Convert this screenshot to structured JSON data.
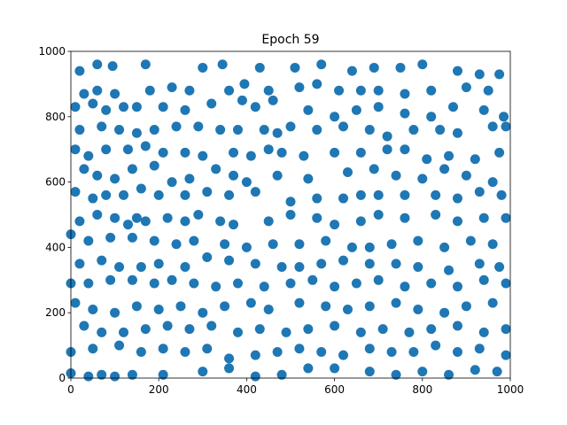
{
  "chart_data": {
    "type": "scatter",
    "title": "Epoch 59",
    "color": "#1f77b4",
    "xlim": [
      0,
      1000
    ],
    "ylim": [
      0,
      1000
    ],
    "xticks": [
      0,
      200,
      400,
      600,
      800,
      1000
    ],
    "yticks": [
      0,
      200,
      400,
      600,
      800,
      1000
    ],
    "x": [
      20,
      60,
      95,
      170,
      300,
      345,
      430,
      510,
      570,
      640,
      690,
      750,
      800,
      880,
      930,
      975,
      30,
      60,
      100,
      180,
      230,
      270,
      360,
      395,
      450,
      520,
      560,
      610,
      660,
      700,
      760,
      820,
      900,
      950,
      10,
      50,
      80,
      120,
      150,
      210,
      260,
      320,
      390,
      420,
      460,
      540,
      600,
      650,
      700,
      760,
      820,
      870,
      940,
      985,
      20,
      70,
      110,
      150,
      190,
      240,
      290,
      340,
      380,
      440,
      470,
      500,
      560,
      620,
      680,
      720,
      780,
      840,
      880,
      960,
      990,
      10,
      40,
      80,
      130,
      170,
      210,
      260,
      300,
      370,
      410,
      450,
      480,
      530,
      600,
      660,
      720,
      760,
      810,
      860,
      920,
      975,
      30,
      60,
      100,
      140,
      190,
      230,
      270,
      330,
      370,
      400,
      470,
      540,
      630,
      690,
      740,
      800,
      850,
      900,
      960,
      10,
      50,
      80,
      120,
      160,
      200,
      260,
      310,
      360,
      420,
      500,
      560,
      620,
      660,
      700,
      760,
      830,
      880,
      930,
      980,
      20,
      60,
      100,
      130,
      150,
      170,
      220,
      260,
      290,
      340,
      370,
      450,
      500,
      560,
      600,
      660,
      700,
      760,
      830,
      880,
      940,
      990,
      0,
      40,
      90,
      140,
      190,
      240,
      280,
      350,
      400,
      460,
      520,
      580,
      640,
      680,
      730,
      790,
      850,
      910,
      960,
      20,
      70,
      110,
      160,
      200,
      260,
      310,
      360,
      420,
      480,
      520,
      570,
      620,
      680,
      740,
      790,
      860,
      930,
      975,
      0,
      40,
      90,
      140,
      190,
      230,
      280,
      330,
      380,
      440,
      500,
      550,
      600,
      650,
      700,
      760,
      820,
      880,
      940,
      990,
      10,
      50,
      100,
      150,
      200,
      250,
      300,
      350,
      410,
      450,
      520,
      580,
      630,
      680,
      740,
      790,
      850,
      900,
      960,
      30,
      70,
      120,
      170,
      220,
      270,
      320,
      380,
      430,
      490,
      540,
      600,
      660,
      710,
      770,
      820,
      880,
      940,
      990,
      0,
      50,
      110,
      160,
      210,
      260,
      310,
      360,
      420,
      470,
      520,
      570,
      620,
      680,
      730,
      780,
      830,
      880,
      930,
      990,
      0,
      40,
      70,
      100,
      140,
      210,
      300,
      360,
      420,
      480,
      540,
      600,
      680,
      740,
      800,
      860,
      920,
      970
    ],
    "y": [
      940,
      960,
      955,
      960,
      950,
      960,
      950,
      950,
      960,
      940,
      950,
      950,
      960,
      940,
      930,
      930,
      870,
      880,
      870,
      880,
      890,
      880,
      880,
      900,
      880,
      890,
      900,
      880,
      880,
      880,
      870,
      880,
      890,
      880,
      830,
      840,
      820,
      830,
      830,
      830,
      820,
      840,
      850,
      830,
      850,
      820,
      800,
      820,
      830,
      810,
      800,
      830,
      820,
      800,
      760,
      770,
      760,
      750,
      760,
      770,
      770,
      760,
      760,
      760,
      750,
      770,
      760,
      770,
      760,
      740,
      760,
      760,
      750,
      770,
      770,
      700,
      680,
      700,
      700,
      710,
      690,
      690,
      680,
      690,
      680,
      700,
      690,
      680,
      690,
      690,
      700,
      700,
      670,
      680,
      670,
      690,
      640,
      620,
      610,
      640,
      650,
      600,
      610,
      640,
      620,
      600,
      620,
      610,
      630,
      640,
      620,
      610,
      640,
      620,
      600,
      570,
      550,
      560,
      560,
      580,
      560,
      560,
      570,
      560,
      570,
      540,
      550,
      550,
      560,
      560,
      560,
      560,
      550,
      570,
      560,
      480,
      500,
      490,
      470,
      490,
      480,
      490,
      480,
      500,
      480,
      470,
      480,
      500,
      490,
      470,
      480,
      500,
      490,
      500,
      480,
      490,
      490,
      440,
      420,
      430,
      430,
      420,
      410,
      420,
      410,
      400,
      410,
      410,
      420,
      400,
      400,
      410,
      420,
      400,
      420,
      410,
      350,
      360,
      340,
      340,
      350,
      340,
      370,
      360,
      350,
      340,
      340,
      350,
      360,
      350,
      350,
      340,
      330,
      350,
      340,
      290,
      290,
      300,
      300,
      290,
      300,
      290,
      280,
      290,
      280,
      290,
      300,
      280,
      290,
      300,
      280,
      290,
      280,
      300,
      290,
      230,
      210,
      200,
      220,
      210,
      220,
      200,
      220,
      230,
      210,
      230,
      220,
      210,
      220,
      230,
      210,
      200,
      220,
      230,
      160,
      140,
      140,
      150,
      160,
      150,
      160,
      140,
      150,
      140,
      150,
      160,
      140,
      150,
      140,
      150,
      160,
      140,
      150,
      80,
      90,
      100,
      80,
      90,
      80,
      90,
      60,
      70,
      80,
      90,
      80,
      70,
      90,
      80,
      80,
      100,
      80,
      90,
      70,
      15,
      5,
      10,
      5,
      10,
      10,
      20,
      30,
      5,
      10,
      30,
      30,
      20,
      10,
      20,
      10,
      25,
      20
    ]
  }
}
